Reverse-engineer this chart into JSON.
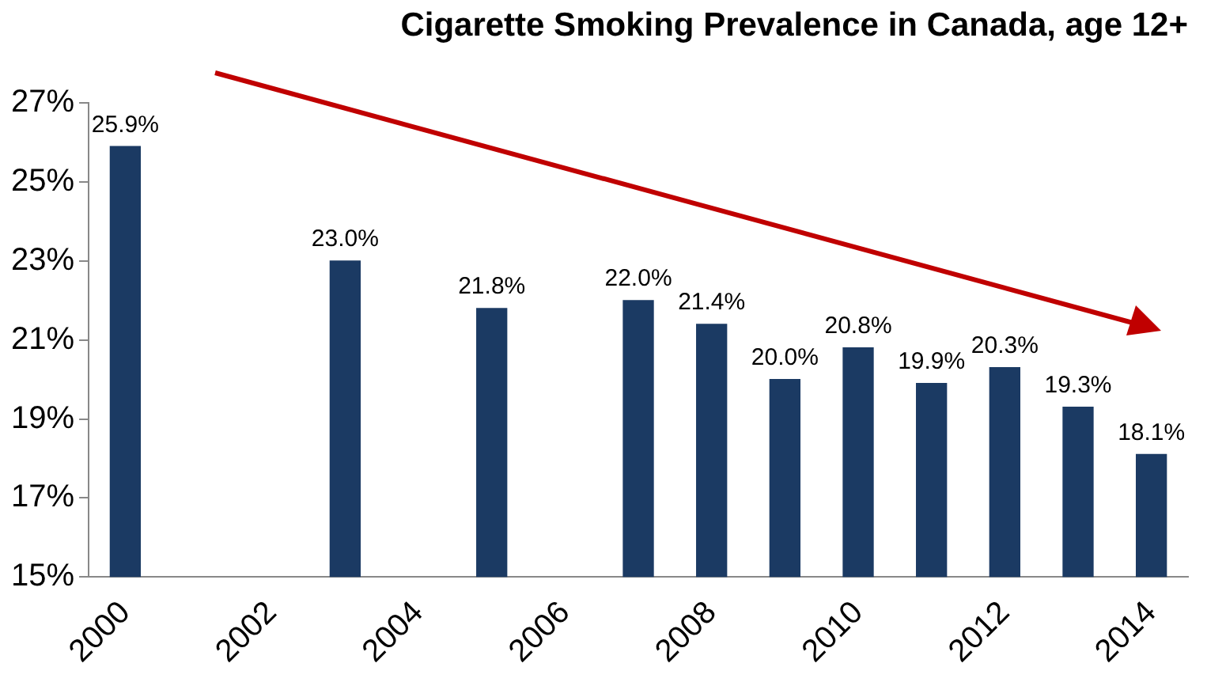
{
  "chart_data": {
    "type": "bar",
    "title": "Cigarette Smoking Prevalence in Canada, age 12+",
    "categories": [
      "2000",
      null,
      "2002",
      null,
      "2004",
      null,
      "2006",
      null,
      "2008",
      null,
      "2010",
      null,
      "2012",
      null,
      "2014"
    ],
    "values": [
      25.9,
      null,
      null,
      23.0,
      null,
      21.8,
      null,
      22.0,
      21.4,
      20.0,
      20.8,
      19.9,
      20.3,
      19.3,
      18.1
    ],
    "value_labels": [
      "25.9%",
      null,
      null,
      "23.0%",
      null,
      "21.8%",
      null,
      "22.0%",
      "21.4%",
      "20.0%",
      "20.8%",
      "19.9%",
      "20.3%",
      "19.3%",
      "18.1%"
    ],
    "color": "#1b3a63",
    "ylim": [
      15,
      27
    ],
    "yticks": [
      {
        "value": 15,
        "label": "15%"
      },
      {
        "value": 17,
        "label": "17%"
      },
      {
        "value": 19,
        "label": "19%"
      },
      {
        "value": 21,
        "label": "21%"
      },
      {
        "value": 23,
        "label": "23%"
      },
      {
        "value": 25,
        "label": "25%"
      },
      {
        "value": 27,
        "label": "27%"
      }
    ]
  }
}
